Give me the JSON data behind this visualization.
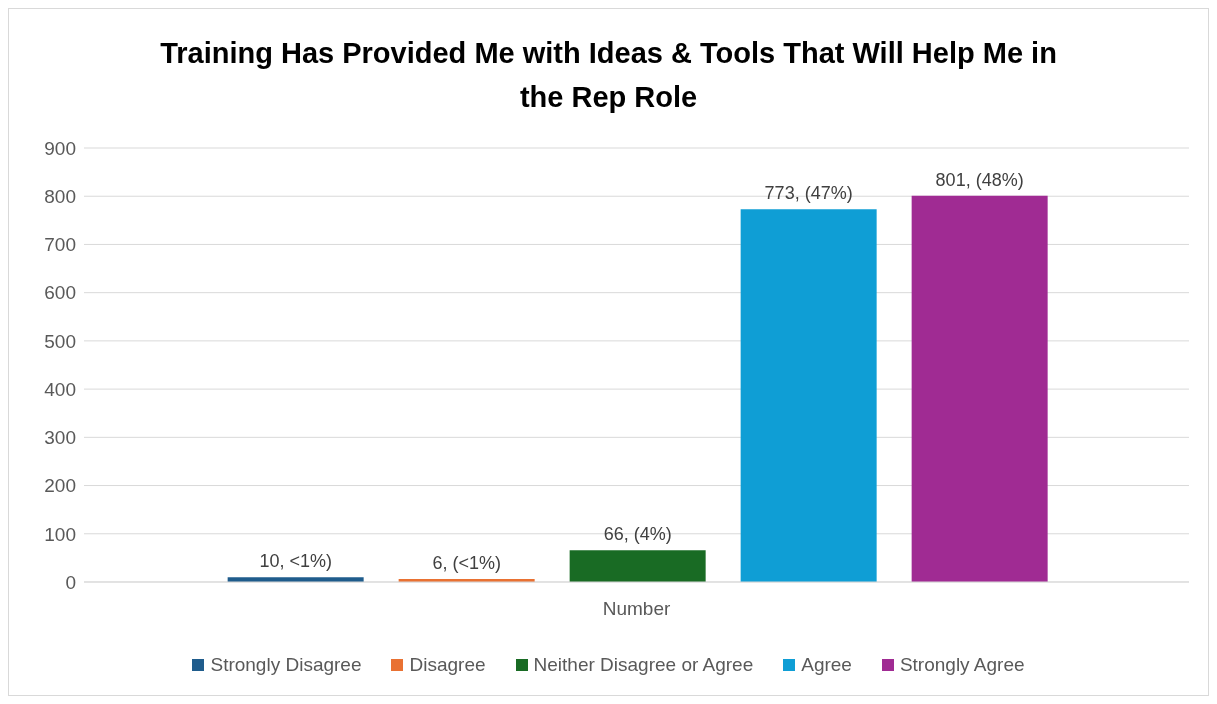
{
  "chart_data": {
    "type": "bar",
    "title": "Training Has Provided Me with Ideas & Tools That Will Help Me in the Rep Role",
    "categories": [
      "Number"
    ],
    "series": [
      {
        "name": "Strongly Disagree",
        "color": "#1f5c8c",
        "values": [
          10
        ],
        "value_labels": [
          "10, <1%)"
        ]
      },
      {
        "name": "Disagree",
        "color": "#e97132",
        "values": [
          6
        ],
        "value_labels": [
          "6, (<1%)"
        ]
      },
      {
        "name": "Neither Disagree or Agree",
        "color": "#196b24",
        "values": [
          66
        ],
        "value_labels": [
          "66, (4%)"
        ]
      },
      {
        "name": "Agree",
        "color": "#0f9ed5",
        "values": [
          773
        ],
        "value_labels": [
          "773, (47%)"
        ]
      },
      {
        "name": "Strongly Agree",
        "color": "#a02b93",
        "values": [
          801
        ],
        "value_labels": [
          "801, (48%)"
        ]
      }
    ],
    "ylim": [
      0,
      900
    ],
    "yticks": [
      0,
      100,
      200,
      300,
      400,
      500,
      600,
      700,
      800,
      900
    ],
    "grid": "y",
    "legend": "bottom"
  }
}
